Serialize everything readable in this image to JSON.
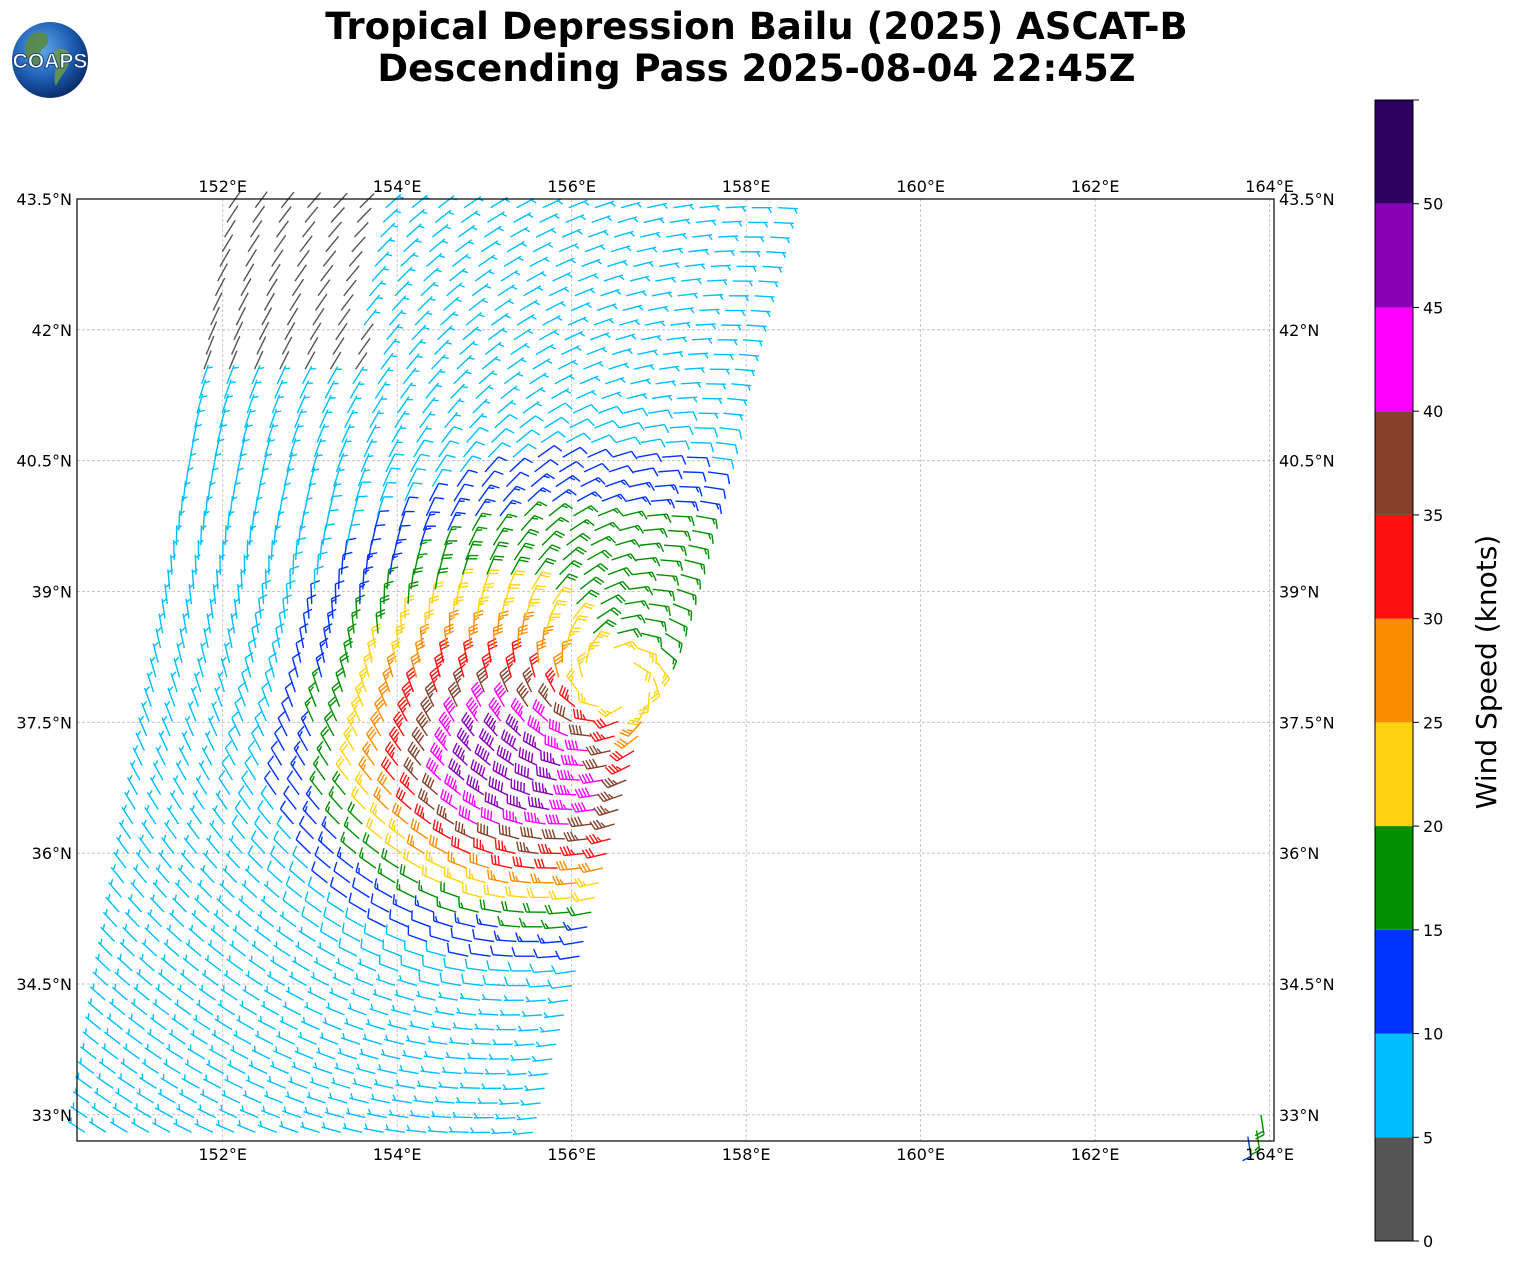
{
  "title": {
    "line1": "Tropical Depression Bailu (2025) ASCAT-B",
    "line2": "Descending Pass 2025-08-04 22:45Z"
  },
  "logo": {
    "text": "COAPS"
  },
  "map": {
    "lon_range": [
      150.33,
      164.05
    ],
    "lat_range": [
      32.7,
      43.5
    ],
    "lon_ticks": [
      "152°E",
      "154°E",
      "156°E",
      "158°E",
      "160°E",
      "162°E",
      "164°E"
    ],
    "lat_ticks": [
      "43.5°N",
      "42°N",
      "40.5°N",
      "39°N",
      "37.5°N",
      "36°N",
      "34.5°N",
      "33°N"
    ],
    "grid": true
  },
  "colorbar": {
    "label": "Wind Speed (knots)",
    "ticks": [
      "0",
      "5",
      "10",
      "15",
      "20",
      "25",
      "30",
      "35",
      "40",
      "45",
      "50"
    ],
    "range": [
      0,
      55
    ],
    "colors": [
      "#555555",
      "#00bfff",
      "#0033ff",
      "#009000",
      "#ffd310",
      "#ff8c00",
      "#ff1010",
      "#84402b",
      "#ff00ff",
      "#8800b8",
      "#2d0060"
    ]
  },
  "chart_data": {
    "type": "wind-barbs",
    "storm": "Tropical Depression Bailu (2025)",
    "instrument": "ASCAT-B",
    "circulation_center": {
      "lon": 156.5,
      "lat": 38.0
    },
    "max_wind_kt_region": {
      "lon": 155.4,
      "lat": 37.0,
      "speed_kt": "30-35"
    },
    "swath_corners": {
      "north_west": [
        152.0,
        43.5
      ],
      "north_east": [
        158.6,
        43.5
      ],
      "south_east": [
        155.7,
        32.7
      ],
      "south_west": [
        150.33,
        32.7
      ]
    }
  }
}
